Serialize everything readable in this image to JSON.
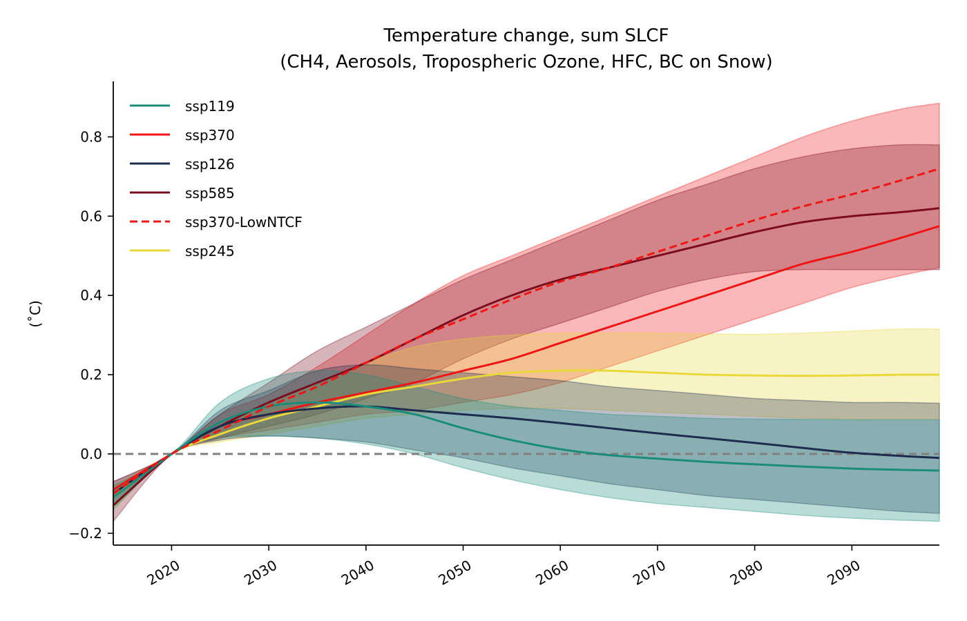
{
  "chart_data": {
    "type": "line",
    "title": "Temperature change, sum SLCF",
    "subtitle": "(CH4, Aerosols, Tropospheric Ozone, HFC, BC on Snow)",
    "xlabel": "",
    "ylabel": "(˚C)",
    "xlim": [
      2014,
      2099
    ],
    "ylim": [
      -0.23,
      0.94
    ],
    "x_ticks": [
      2020,
      2030,
      2040,
      2050,
      2060,
      2070,
      2080,
      2090
    ],
    "x_tick_labels": [
      "2020",
      "2030",
      "2040",
      "2050",
      "2060",
      "2070",
      "2080",
      "2090"
    ],
    "y_ticks": [
      -0.2,
      0.0,
      0.2,
      0.4,
      0.6,
      0.8
    ],
    "y_tick_labels": [
      "−0.2",
      "0.0",
      "0.2",
      "0.4",
      "0.6",
      "0.8"
    ],
    "reference_line": {
      "y": 0.0,
      "style": "dashed",
      "color": "#808080"
    },
    "grid": false,
    "legend_position": "top-left",
    "x": [
      2014,
      2020,
      2025,
      2030,
      2035,
      2040,
      2045,
      2050,
      2055,
      2060,
      2065,
      2070,
      2075,
      2080,
      2085,
      2090,
      2095,
      2099
    ],
    "series": [
      {
        "name": "ssp370",
        "color": "#f01414",
        "dash": "solid",
        "values": [
          -0.09,
          0.0,
          0.07,
          0.1,
          0.13,
          0.155,
          0.18,
          0.21,
          0.24,
          0.28,
          0.32,
          0.36,
          0.4,
          0.44,
          0.48,
          0.51,
          0.545,
          0.575
        ],
        "band_lower": [
          -0.11,
          0.0,
          0.04,
          0.06,
          0.08,
          0.1,
          0.11,
          0.13,
          0.15,
          0.18,
          0.22,
          0.26,
          0.3,
          0.34,
          0.38,
          0.42,
          0.45,
          0.47
        ],
        "band_upper": [
          -0.07,
          0.0,
          0.1,
          0.15,
          0.22,
          0.3,
          0.38,
          0.45,
          0.5,
          0.55,
          0.6,
          0.65,
          0.7,
          0.75,
          0.8,
          0.84,
          0.87,
          0.885
        ]
      },
      {
        "name": "ssp585",
        "color": "#7b0c1e",
        "dash": "solid",
        "values": [
          -0.13,
          0.0,
          0.07,
          0.13,
          0.18,
          0.23,
          0.29,
          0.35,
          0.4,
          0.44,
          0.47,
          0.5,
          0.53,
          0.56,
          0.585,
          0.6,
          0.61,
          0.62
        ],
        "band_lower": [
          -0.17,
          0.0,
          0.04,
          0.07,
          0.1,
          0.14,
          0.18,
          0.24,
          0.29,
          0.33,
          0.37,
          0.41,
          0.44,
          0.46,
          0.465,
          0.465,
          0.465,
          0.465
        ],
        "band_upper": [
          -0.09,
          0.0,
          0.1,
          0.18,
          0.26,
          0.32,
          0.38,
          0.44,
          0.49,
          0.54,
          0.59,
          0.64,
          0.68,
          0.72,
          0.75,
          0.77,
          0.78,
          0.78
        ]
      },
      {
        "name": "ssp245",
        "color": "#e8d83a",
        "dash": "solid",
        "values": [
          -0.11,
          0.0,
          0.05,
          0.09,
          0.12,
          0.15,
          0.17,
          0.19,
          0.205,
          0.21,
          0.21,
          0.205,
          0.2,
          0.198,
          0.197,
          0.198,
          0.2,
          0.2
        ],
        "band_lower": [
          -0.14,
          0.0,
          0.03,
          0.05,
          0.07,
          0.09,
          0.1,
          0.11,
          0.115,
          0.115,
          0.11,
          0.105,
          0.1,
          0.095,
          0.09,
          0.088,
          0.088,
          0.088
        ],
        "band_upper": [
          -0.08,
          0.0,
          0.07,
          0.13,
          0.18,
          0.23,
          0.27,
          0.29,
          0.3,
          0.305,
          0.305,
          0.305,
          0.303,
          0.302,
          0.305,
          0.31,
          0.315,
          0.315
        ]
      },
      {
        "name": "ssp126",
        "color": "#1d2b4f",
        "dash": "solid",
        "values": [
          -0.1,
          0.0,
          0.07,
          0.1,
          0.115,
          0.12,
          0.11,
          0.1,
          0.09,
          0.078,
          0.065,
          0.052,
          0.04,
          0.028,
          0.015,
          0.003,
          -0.005,
          -0.01
        ],
        "band_lower": [
          -0.13,
          0.0,
          0.035,
          0.045,
          0.04,
          0.03,
          0.01,
          -0.01,
          -0.035,
          -0.055,
          -0.075,
          -0.09,
          -0.105,
          -0.115,
          -0.125,
          -0.135,
          -0.145,
          -0.15
        ],
        "band_upper": [
          -0.07,
          0.0,
          0.11,
          0.16,
          0.21,
          0.225,
          0.215,
          0.205,
          0.195,
          0.185,
          0.17,
          0.16,
          0.15,
          0.14,
          0.135,
          0.13,
          0.13,
          0.128
        ]
      },
      {
        "name": "ssp119",
        "color": "#1a8c7a",
        "dash": "solid",
        "values": [
          -0.11,
          0.0,
          0.08,
          0.12,
          0.13,
          0.12,
          0.1,
          0.065,
          0.035,
          0.012,
          -0.003,
          -0.012,
          -0.02,
          -0.026,
          -0.032,
          -0.037,
          -0.04,
          -0.042
        ],
        "band_lower": [
          -0.14,
          0.0,
          0.04,
          0.045,
          0.04,
          0.025,
          0.0,
          -0.035,
          -0.065,
          -0.09,
          -0.11,
          -0.125,
          -0.135,
          -0.145,
          -0.155,
          -0.162,
          -0.167,
          -0.17
        ],
        "band_upper": [
          -0.08,
          0.0,
          0.13,
          0.19,
          0.21,
          0.2,
          0.17,
          0.14,
          0.12,
          0.11,
          0.1,
          0.095,
          0.09,
          0.088,
          0.087,
          0.086,
          0.086,
          0.086
        ]
      },
      {
        "name": "ssp370-LowNTCF",
        "color": "#f01414",
        "dash": "dashed",
        "values": [
          -0.1,
          0.0,
          0.06,
          0.12,
          0.17,
          0.23,
          0.29,
          0.34,
          0.39,
          0.435,
          0.47,
          0.51,
          0.55,
          0.59,
          0.625,
          0.655,
          0.69,
          0.72
        ],
        "band_lower": null,
        "band_upper": null
      }
    ],
    "legend_entries": [
      "ssp119",
      "ssp370",
      "ssp126",
      "ssp585",
      "ssp370-LowNTCF",
      "ssp245"
    ]
  }
}
